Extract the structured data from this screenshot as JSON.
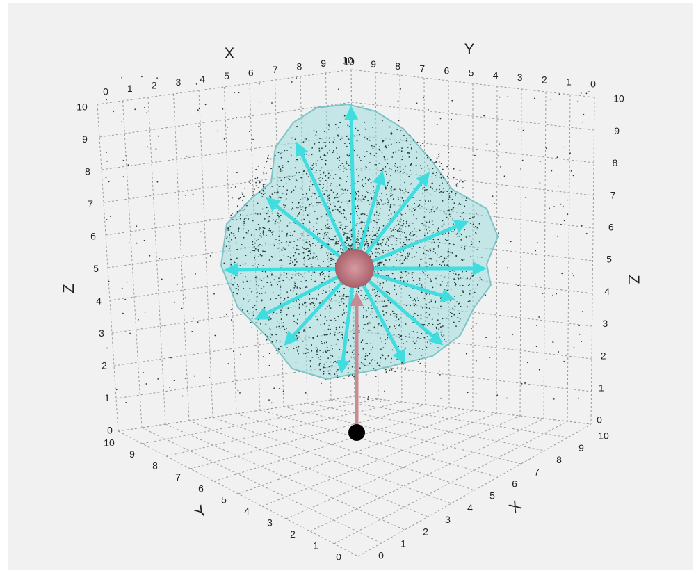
{
  "axes": {
    "top_x": {
      "label": "X",
      "ticks": [
        0,
        1,
        2,
        3,
        4,
        5,
        6,
        7,
        8,
        9,
        10
      ]
    },
    "top_y": {
      "label": "Y",
      "ticks": [
        10,
        9,
        8,
        7,
        6,
        5,
        4,
        3,
        2,
        1,
        0
      ]
    },
    "left_z": {
      "label": "Z",
      "ticks": [
        10,
        9,
        8,
        7,
        6,
        5,
        4,
        3,
        2,
        1,
        0
      ]
    },
    "right_z": {
      "label": "Z",
      "ticks": [
        10,
        9,
        8,
        7,
        6,
        5,
        4,
        3,
        2,
        1,
        0
      ]
    },
    "bottom_y": {
      "label": "Y",
      "ticks": [
        10,
        9,
        8,
        7,
        6,
        5,
        4,
        3,
        2,
        1,
        0
      ]
    },
    "bottom_x": {
      "label": "X",
      "ticks": [
        0,
        1,
        2,
        3,
        4,
        5,
        6,
        7,
        8,
        9,
        10
      ]
    }
  }
}
